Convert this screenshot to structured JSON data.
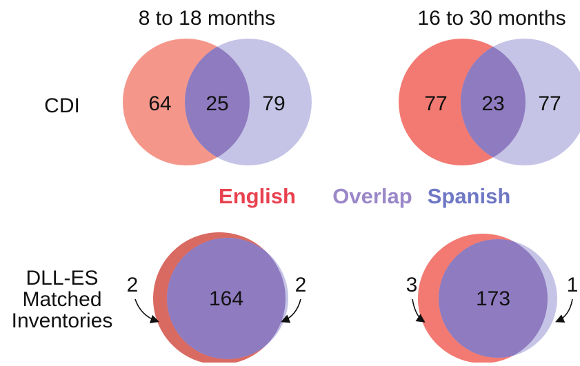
{
  "columns": [
    {
      "title": "8 to 18 months"
    },
    {
      "title": "16 to 30 months"
    }
  ],
  "rows": [
    {
      "label": [
        "CDI"
      ]
    },
    {
      "label": [
        "DLL-ES",
        "Matched",
        "Inventories"
      ]
    }
  ],
  "legend": [
    "English",
    "Overlap",
    "Spanish"
  ],
  "venns": [
    {
      "english": 64,
      "overlap": 25,
      "spanish": 79
    },
    {
      "english": 77,
      "overlap": 23,
      "spanish": 77
    },
    {
      "english": 2,
      "overlap": 164,
      "spanish": 2
    },
    {
      "english": 3,
      "overlap": 173,
      "spanish": 1
    }
  ]
}
